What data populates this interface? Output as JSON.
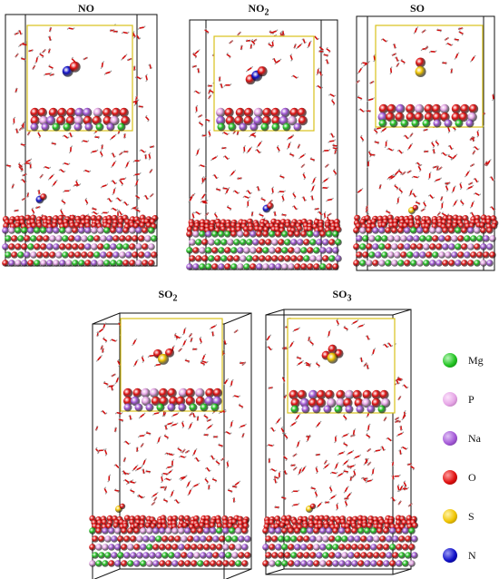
{
  "panels": [
    {
      "id": "no",
      "title": "NO",
      "sub": "",
      "molecule": "NO"
    },
    {
      "id": "no2",
      "title": "NO",
      "sub": "2",
      "molecule": "NO2"
    },
    {
      "id": "so",
      "title": "SO",
      "sub": "",
      "molecule": "SO"
    },
    {
      "id": "so2",
      "title": "SO",
      "sub": "2",
      "molecule": "SO2"
    },
    {
      "id": "so3",
      "title": "SO",
      "sub": "3",
      "molecule": "SO3"
    }
  ],
  "legend": [
    {
      "label": "Mg",
      "color": "#22c422"
    },
    {
      "label": "P",
      "color": "#e6a6e6"
    },
    {
      "label": "Na",
      "color": "#a55ad8"
    },
    {
      "label": "O",
      "color": "#e01010"
    },
    {
      "label": "S",
      "color": "#f0c400"
    },
    {
      "label": "N",
      "color": "#1010c8"
    }
  ]
}
